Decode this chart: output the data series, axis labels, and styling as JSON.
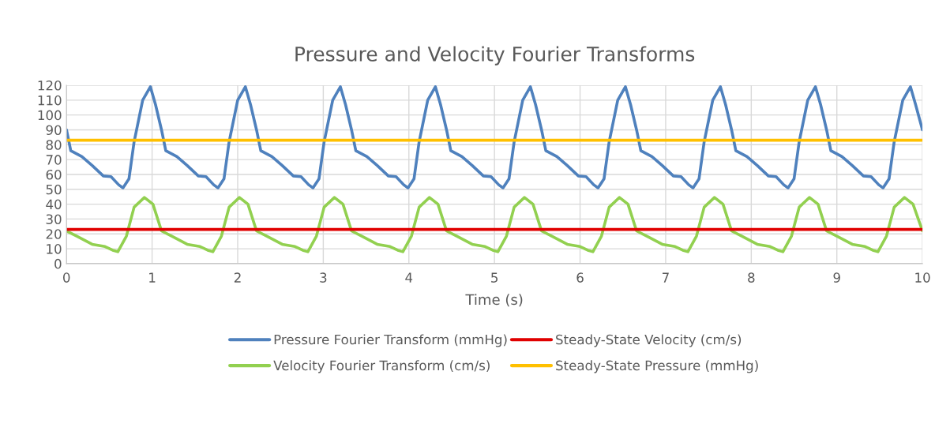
{
  "chart_data": {
    "type": "line",
    "title": "Pressure and Velocity Fourier Transforms",
    "xlabel": "Time (s)",
    "xlim": [
      0,
      10
    ],
    "xticks": [
      0,
      1,
      2,
      3,
      4,
      5,
      6,
      7,
      8,
      9,
      10
    ],
    "ylim": [
      0,
      120
    ],
    "yticks": [
      0,
      10,
      20,
      30,
      40,
      50,
      60,
      70,
      80,
      90,
      100,
      110,
      120
    ],
    "grid": true,
    "legend": "bottom",
    "line_style": "solid",
    "marker": "none",
    "series": [
      {
        "name": "Pressure Fourier Transform (mmHg)",
        "color": "#4f81bd",
        "x": [
          0,
          0.05,
          0.18,
          0.3,
          0.43,
          0.52,
          0.61,
          0.66,
          0.73,
          0.79,
          0.89,
          0.98,
          1.04,
          1.11,
          1.16,
          1.29,
          1.41,
          1.54,
          1.63,
          1.72,
          1.77,
          1.84,
          1.9,
          2,
          2.09,
          2.15,
          2.22,
          2.27,
          2.4,
          2.52,
          2.65,
          2.74,
          2.83,
          2.88,
          2.95,
          3.01,
          3.11,
          3.2,
          3.26,
          3.33,
          3.38,
          3.51,
          3.63,
          3.76,
          3.85,
          3.94,
          3.99,
          4.06,
          4.12,
          4.22,
          4.31,
          4.37,
          4.44,
          4.49,
          4.62,
          4.74,
          4.87,
          4.96,
          5.05,
          5.1,
          5.17,
          5.23,
          5.33,
          5.42,
          5.48,
          5.55,
          5.6,
          5.73,
          5.85,
          5.98,
          6.07,
          6.16,
          6.21,
          6.28,
          6.34,
          6.44,
          6.53,
          6.59,
          6.66,
          6.71,
          6.84,
          6.96,
          7.09,
          7.18,
          7.27,
          7.32,
          7.39,
          7.45,
          7.55,
          7.64,
          7.7,
          7.77,
          7.82,
          7.95,
          8.07,
          8.2,
          8.29,
          8.38,
          8.43,
          8.5,
          8.56,
          8.66,
          8.75,
          8.81,
          8.88,
          8.93,
          9.06,
          9.18,
          9.31,
          9.4,
          9.49,
          9.54,
          9.61,
          9.67,
          9.77,
          9.86,
          9.92,
          10
        ],
        "values": [
          90,
          76,
          72,
          66,
          59,
          58.5,
          53,
          51,
          57,
          82,
          110,
          119,
          107,
          90,
          76,
          72,
          66,
          59,
          58.5,
          53,
          51,
          57,
          82,
          110,
          119,
          107,
          90,
          76,
          72,
          66,
          59,
          58.5,
          53,
          51,
          57,
          82,
          110,
          119,
          107,
          90,
          76,
          72,
          66,
          59,
          58.5,
          53,
          51,
          57,
          82,
          110,
          119,
          107,
          90,
          76,
          72,
          66,
          59,
          58.5,
          53,
          51,
          57,
          82,
          110,
          119,
          107,
          90,
          76,
          72,
          66,
          59,
          58.5,
          53,
          51,
          57,
          82,
          110,
          119,
          107,
          90,
          76,
          72,
          66,
          59,
          58.5,
          53,
          51,
          57,
          82,
          110,
          119,
          107,
          90,
          76,
          72,
          66,
          59,
          58.5,
          53,
          51,
          57,
          82,
          110,
          119,
          107,
          90,
          76,
          72,
          66,
          59,
          58.5,
          53,
          51,
          57,
          82,
          110,
          119,
          107,
          90
        ]
      },
      {
        "name": "Velocity Fourier Transform (cm/s)",
        "color": "#92d050",
        "x": [
          0,
          0.12,
          0.3,
          0.45,
          0.54,
          0.6,
          0.7,
          0.79,
          0.91,
          1.01,
          1.11,
          1.23,
          1.41,
          1.56,
          1.65,
          1.71,
          1.81,
          1.9,
          2.02,
          2.12,
          2.22,
          2.34,
          2.52,
          2.67,
          2.76,
          2.82,
          2.92,
          3.01,
          3.13,
          3.23,
          3.33,
          3.45,
          3.63,
          3.78,
          3.87,
          3.93,
          4.03,
          4.12,
          4.24,
          4.34,
          4.44,
          4.56,
          4.74,
          4.89,
          4.98,
          5.04,
          5.14,
          5.23,
          5.35,
          5.45,
          5.55,
          5.67,
          5.85,
          6,
          6.09,
          6.15,
          6.25,
          6.34,
          6.46,
          6.56,
          6.66,
          6.78,
          6.96,
          7.11,
          7.2,
          7.26,
          7.36,
          7.45,
          7.57,
          7.67,
          7.77,
          7.89,
          8.07,
          8.22,
          8.31,
          8.37,
          8.47,
          8.56,
          8.68,
          8.78,
          8.88,
          9,
          9.18,
          9.33,
          9.42,
          9.48,
          9.58,
          9.67,
          9.79,
          9.89,
          10
        ],
        "values": [
          22,
          18.5,
          13,
          11.5,
          9,
          8,
          18.5,
          38,
          44.5,
          40,
          22,
          18.5,
          13,
          11.5,
          9,
          8,
          18.5,
          38,
          44.5,
          40,
          22,
          18.5,
          13,
          11.5,
          9,
          8,
          18.5,
          38,
          44.5,
          40,
          22,
          18.5,
          13,
          11.5,
          9,
          8,
          18.5,
          38,
          44.5,
          40,
          22,
          18.5,
          13,
          11.5,
          9,
          8,
          18.5,
          38,
          44.5,
          40,
          22,
          18.5,
          13,
          11.5,
          9,
          8,
          18.5,
          38,
          44.5,
          40,
          22,
          18.5,
          13,
          11.5,
          9,
          8,
          18.5,
          38,
          44.5,
          40,
          22,
          18.5,
          13,
          11.5,
          9,
          8,
          18.5,
          38,
          44.5,
          40,
          22,
          18.5,
          13,
          11.5,
          9,
          8,
          18.5,
          38,
          44.5,
          40,
          22
        ]
      },
      {
        "name": "Steady-State Velocity (cm/s)",
        "color": "#e00000",
        "x": [
          0,
          10
        ],
        "values": [
          23,
          23
        ]
      },
      {
        "name": "Steady-State Pressure (mmHg)",
        "color": "#ffc000",
        "x": [
          0,
          10
        ],
        "values": [
          83,
          83
        ]
      }
    ]
  }
}
